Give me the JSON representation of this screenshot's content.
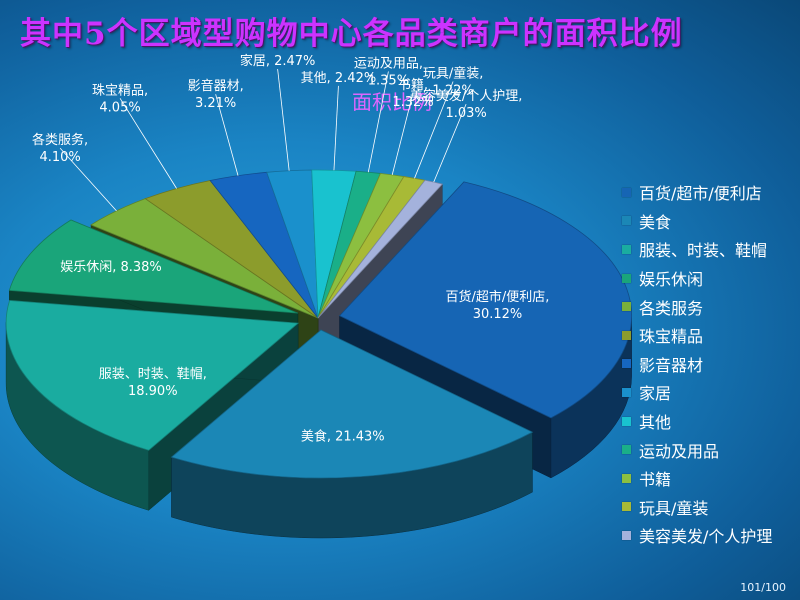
{
  "slide": {
    "title": "其中5个区域型购物中心各品类商户的面积比例",
    "page_number": "101/100"
  },
  "chart_data": {
    "type": "pie",
    "title": "面积比例",
    "categories": [
      "百货/超市/便利店",
      "美食",
      "服装、时装、鞋帽",
      "娱乐休闲",
      "各类服务",
      "珠宝精品",
      "影音器材",
      "家居",
      "其他",
      "运动及用品",
      "书籍",
      "玩具/童装",
      "美容美发/个人护理"
    ],
    "values": [
      30.12,
      21.43,
      18.9,
      8.38,
      4.1,
      4.05,
      3.21,
      2.47,
      2.42,
      1.35,
      1.32,
      1.22,
      1.03
    ],
    "data_labels": [
      [
        "百货/超市/便利店,",
        "30.12%"
      ],
      [
        "美食, 21.43%"
      ],
      [
        "服装、时装、鞋帽,",
        "18.90%"
      ],
      [
        "娱乐休闲, 8.38%"
      ],
      [
        "各类服务,",
        "4.10%"
      ],
      [
        "珠宝精品,",
        "4.05%"
      ],
      [
        "影音器材,",
        "3.21%"
      ],
      [
        "家居, 2.47%"
      ],
      [
        "其他, 2.42%"
      ],
      [
        "运动及用品,",
        "1.35%"
      ],
      [
        "书籍,",
        "1.32%"
      ],
      [
        "玩具/童装,",
        "1.22%"
      ],
      [
        "美容美发/个人护理,",
        "1.03%"
      ]
    ],
    "colors": [
      "#1665b4",
      "#1b87b6",
      "#1aaca0",
      "#1aa57a",
      "#7ab03a",
      "#8c9c2c",
      "#1666c0",
      "#1a90cc",
      "#19c2cf",
      "#1aaf88",
      "#8cbf40",
      "#a8ba36",
      "#a4b2dc"
    ],
    "legend_position": "right",
    "exploded_slices": [
      0,
      1,
      2,
      3
    ],
    "style": "3d"
  }
}
